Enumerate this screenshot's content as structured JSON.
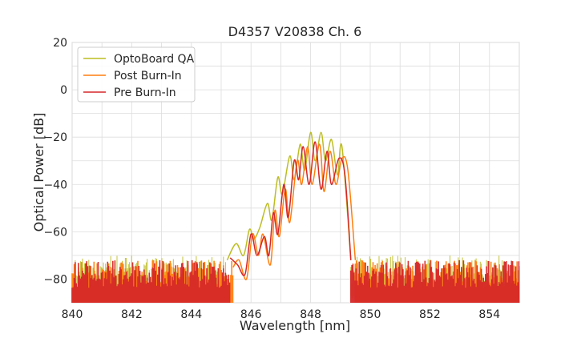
{
  "chart_data": {
    "type": "line",
    "title": "D4357 V20838 Ch. 6",
    "xlabel": "Wavelength [nm]",
    "ylabel": "Optical Power [dB]",
    "xlim": [
      840,
      855
    ],
    "ylim": [
      -90,
      20
    ],
    "xticks": [
      840,
      842,
      844,
      846,
      848,
      850,
      852,
      854
    ],
    "yticks": [
      20,
      0,
      -20,
      -40,
      -60,
      -80
    ],
    "grid": true,
    "legend_position": "top-left",
    "noise_floor_db": -76,
    "series": [
      {
        "name": "OptoBoard QA",
        "color": "#bcbd22",
        "points": [
          [
            845.2,
            -72
          ],
          [
            845.5,
            -65
          ],
          [
            845.75,
            -70
          ],
          [
            845.95,
            -59
          ],
          [
            846.1,
            -63
          ],
          [
            846.3,
            -58
          ],
          [
            846.55,
            -48
          ],
          [
            846.7,
            -55
          ],
          [
            846.9,
            -37
          ],
          [
            847.05,
            -44
          ],
          [
            847.3,
            -28
          ],
          [
            847.45,
            -38
          ],
          [
            847.65,
            -23
          ],
          [
            847.8,
            -34
          ],
          [
            848.0,
            -18
          ],
          [
            848.15,
            -30
          ],
          [
            848.35,
            -18
          ],
          [
            848.5,
            -30
          ],
          [
            848.7,
            -21
          ],
          [
            848.9,
            -36
          ],
          [
            849.05,
            -24
          ],
          [
            849.35,
            -72
          ]
        ]
      },
      {
        "name": "Post Burn-In",
        "color": "#ff7f0e",
        "points": [
          [
            845.4,
            -75
          ],
          [
            845.6,
            -72
          ],
          [
            845.85,
            -80
          ],
          [
            846.05,
            -61
          ],
          [
            846.25,
            -70
          ],
          [
            846.4,
            -61
          ],
          [
            846.65,
            -74
          ],
          [
            846.8,
            -51
          ],
          [
            846.95,
            -62
          ],
          [
            847.15,
            -42
          ],
          [
            847.3,
            -56
          ],
          [
            847.55,
            -30
          ],
          [
            847.7,
            -40
          ],
          [
            847.9,
            -24
          ],
          [
            848.05,
            -40
          ],
          [
            848.3,
            -23
          ],
          [
            848.45,
            -43
          ],
          [
            848.65,
            -26
          ],
          [
            848.85,
            -40
          ],
          [
            849.05,
            -29
          ],
          [
            849.25,
            -34
          ],
          [
            849.5,
            -72
          ]
        ]
      },
      {
        "name": "Pre Burn-In",
        "color": "#d62728",
        "points": [
          [
            845.3,
            -71
          ],
          [
            845.55,
            -74
          ],
          [
            845.8,
            -78
          ],
          [
            846.0,
            -61
          ],
          [
            846.2,
            -70
          ],
          [
            846.45,
            -62
          ],
          [
            846.6,
            -70
          ],
          [
            846.75,
            -52
          ],
          [
            846.9,
            -61
          ],
          [
            847.1,
            -40
          ],
          [
            847.25,
            -54
          ],
          [
            847.45,
            -30
          ],
          [
            847.6,
            -38
          ],
          [
            847.75,
            -24
          ],
          [
            847.95,
            -40
          ],
          [
            848.15,
            -22
          ],
          [
            848.35,
            -42
          ],
          [
            848.55,
            -26
          ],
          [
            848.7,
            -40
          ],
          [
            848.95,
            -29
          ],
          [
            849.15,
            -36
          ],
          [
            849.35,
            -72
          ]
        ]
      }
    ]
  }
}
